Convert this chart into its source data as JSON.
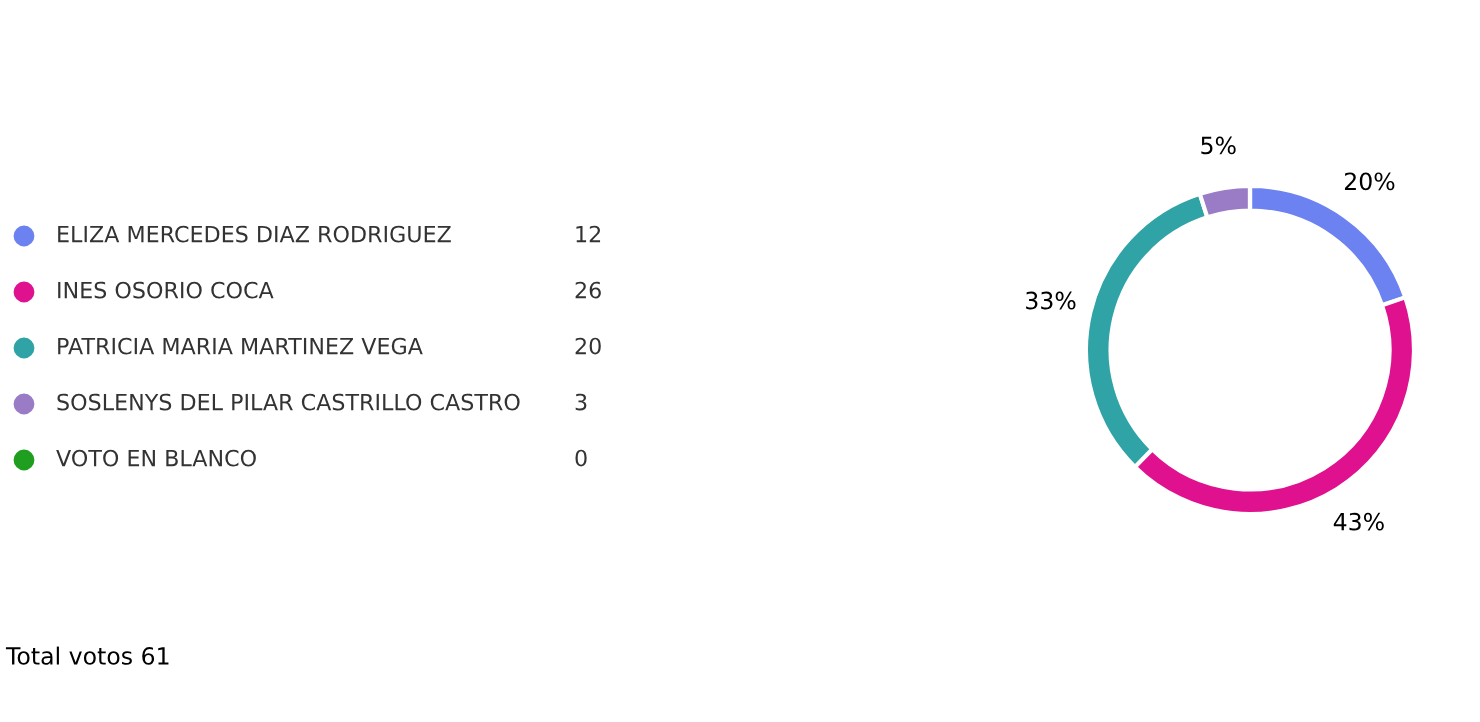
{
  "chart_data": {
    "type": "donut",
    "categories": [
      "ELIZA MERCEDES DIAZ RODRIGUEZ",
      "INES OSORIO COCA",
      "PATRICIA MARIA MARTINEZ VEGA",
      "SOSLENYS DEL PILAR CASTRILLO CASTRO",
      "VOTO EN BLANCO"
    ],
    "values": [
      20,
      43,
      33,
      5,
      0
    ],
    "colors": [
      "#6b82f0",
      "#e0118f",
      "#2fa3a6",
      "#9a7cc6",
      "#1f9e1f"
    ],
    "value_labels": [
      "20%",
      "43%",
      "33%",
      "5%",
      null
    ],
    "legend": "left",
    "annotations": [
      "12",
      "26",
      "20",
      "3",
      "0",
      "Total votos 61"
    ]
  }
}
